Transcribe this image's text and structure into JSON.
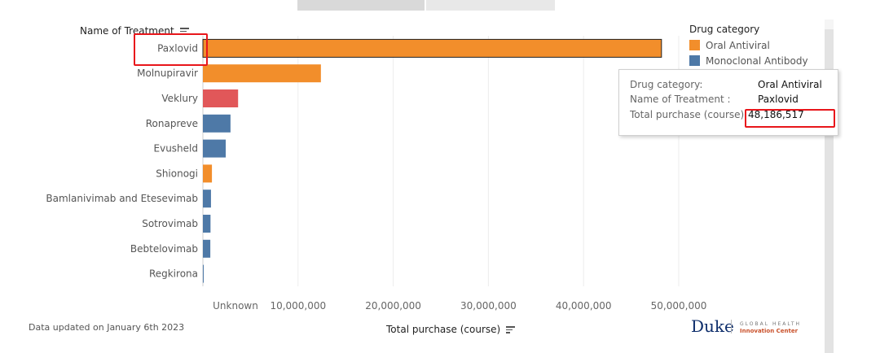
{
  "header": {
    "tabs": [
      "",
      ""
    ]
  },
  "chart_data": {
    "type": "bar",
    "orientation": "horizontal",
    "ylabel": "Name of Treatment",
    "xlabel": "Total purchase (course)",
    "categories": [
      "Paxlovid",
      "Molnupiravir",
      "Veklury",
      "Ronapreve",
      "Evusheld",
      "Shionogi",
      "Bamlanivimab and Etesevimab",
      "Sotrovimab",
      "Bebtelovimab",
      "Regkirona"
    ],
    "values": [
      48186517,
      12400000,
      3700000,
      2900000,
      2400000,
      950000,
      850000,
      800000,
      780000,
      50000
    ],
    "bar_categories": [
      "Oral Antiviral",
      "Oral Antiviral",
      "Antiviral",
      "Monoclonal Antibody",
      "Monoclonal Antibody",
      "Oral Antiviral",
      "Monoclonal Antibody",
      "Monoclonal Antibody",
      "Monoclonal Antibody",
      "Monoclonal Antibody"
    ],
    "highlighted_category": "Paxlovid",
    "xlim": [
      0,
      50000000
    ],
    "x_ticks": [
      {
        "value": null,
        "label": "Unknown"
      },
      {
        "value": 10000000,
        "label": "10,000,000"
      },
      {
        "value": 20000000,
        "label": "20,000,000"
      },
      {
        "value": 30000000,
        "label": "30,000,000"
      },
      {
        "value": 40000000,
        "label": "40,000,000"
      },
      {
        "value": 50000000,
        "label": "50,000,000"
      }
    ],
    "grid": true
  },
  "legend": {
    "title": "Drug category",
    "placement": "top-right",
    "items": [
      {
        "label": "Oral Antiviral",
        "color": "#f28e2b"
      },
      {
        "label": "Monoclonal Antibody",
        "color": "#4e79a7"
      }
    ]
  },
  "colors": {
    "Oral Antiviral": "#f28e2b",
    "Monoclonal Antibody": "#4e79a7",
    "Antiviral": "#e15759",
    "highlight": "#e8161b"
  },
  "tooltip": {
    "rows": [
      {
        "key": "Drug category:",
        "value": "Oral Antiviral"
      },
      {
        "key": "Name of Treatment :",
        "value": "Paxlovid"
      },
      {
        "key": "Total purchase (course):",
        "value": "48,186,517"
      }
    ]
  },
  "footnote": "Data updated on January 6th 2023",
  "branding": {
    "duke": "Duke",
    "line1": "GLOBAL HEALTH",
    "line2": "Innovation Center"
  },
  "icons": {
    "sort": "sort-icon"
  }
}
